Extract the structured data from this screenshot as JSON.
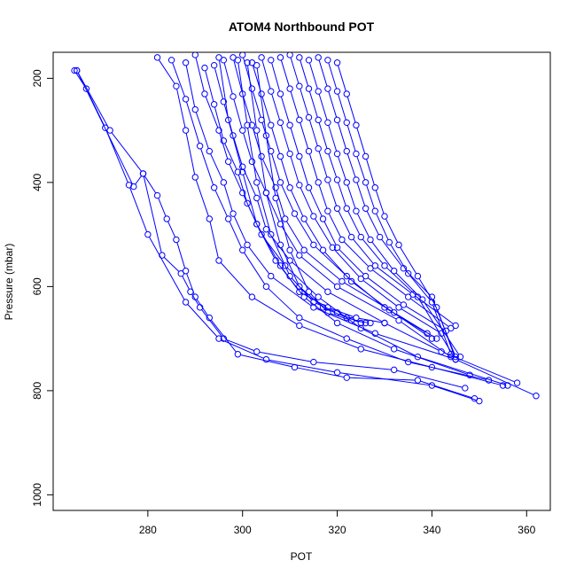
{
  "chart_data": {
    "type": "line",
    "title": "ATOM4 Northbound POT",
    "xlabel": "POT",
    "ylabel": "Pressure (mbar)",
    "xlim": [
      260,
      365
    ],
    "ylim_top_to_bottom": [
      150,
      1030
    ],
    "y_reversed": true,
    "x_ticks": [
      {
        "value": 280,
        "label": "280"
      },
      {
        "value": 300,
        "label": "300"
      },
      {
        "value": 320,
        "label": "320"
      },
      {
        "value": 340,
        "label": "340"
      },
      {
        "value": 360,
        "label": "360"
      }
    ],
    "y_ticks": [
      {
        "value": 200,
        "label": "200"
      },
      {
        "value": 400,
        "label": "400"
      },
      {
        "value": 600,
        "label": "600"
      },
      {
        "value": 800,
        "label": "800"
      },
      {
        "value": 1000,
        "label": "1000"
      }
    ],
    "series_color": "#0000FF",
    "marker": "open-circle",
    "grid": false,
    "legend": "none",
    "series": [
      {
        "x": [
          264.5,
          267,
          271,
          276,
          280,
          288,
          295,
          305,
          320,
          340,
          350
        ],
        "y": [
          185,
          220,
          295,
          405,
          500,
          630,
          700,
          740,
          765,
          790,
          820
        ]
      },
      {
        "x": [
          265,
          277,
          279,
          282,
          284,
          286,
          288,
          290,
          293,
          299,
          311,
          322,
          337,
          349
        ],
        "y": [
          185,
          408,
          383,
          425,
          470,
          510,
          570,
          620,
          660,
          730,
          755,
          775,
          780,
          815
        ]
      },
      {
        "x": [
          265,
          272,
          279,
          283,
          287,
          289,
          291,
          296,
          303,
          315,
          332,
          347
        ],
        "y": [
          185,
          300,
          383,
          540,
          575,
          610,
          640,
          700,
          725,
          745,
          760,
          795
        ]
      },
      {
        "x": [
          282,
          286,
          288,
          290,
          293,
          295,
          302,
          312,
          325,
          340,
          355
        ],
        "y": [
          160,
          215,
          300,
          390,
          470,
          550,
          620,
          675,
          720,
          755,
          790
        ]
      },
      {
        "x": [
          285,
          288,
          291,
          294,
          297,
          300,
          305,
          312,
          322,
          335,
          352
        ],
        "y": [
          165,
          240,
          330,
          410,
          470,
          530,
          600,
          660,
          700,
          745,
          780
        ]
      },
      {
        "x": [
          288,
          290,
          293,
          296,
          298,
          301,
          306,
          315,
          328,
          345,
          362
        ],
        "y": [
          170,
          260,
          340,
          400,
          460,
          520,
          580,
          640,
          690,
          740,
          810
        ]
      },
      {
        "x": [
          290,
          292,
          295,
          297,
          300,
          303,
          307,
          313,
          320,
          332,
          348
        ],
        "y": [
          155,
          230,
          300,
          360,
          420,
          480,
          550,
          620,
          670,
          720,
          770
        ]
      },
      {
        "x": [
          292,
          294,
          296,
          299,
          301,
          304,
          309,
          316,
          325,
          337,
          356
        ],
        "y": [
          180,
          250,
          320,
          380,
          440,
          500,
          560,
          620,
          680,
          735,
          790
        ]
      },
      {
        "x": [
          294,
          296,
          298,
          300,
          303,
          305,
          310,
          318,
          330,
          342,
          358
        ],
        "y": [
          175,
          245,
          310,
          370,
          430,
          490,
          550,
          610,
          670,
          725,
          785
        ]
      },
      {
        "x": [
          296,
          298,
          300,
          302,
          305,
          308,
          312,
          320,
          333,
          344
        ],
        "y": [
          165,
          235,
          300,
          360,
          420,
          480,
          540,
          600,
          665,
          735
        ]
      },
      {
        "x": [
          298,
          300,
          302,
          304,
          307,
          309,
          313,
          321,
          332,
          341
        ],
        "y": [
          160,
          230,
          290,
          350,
          410,
          470,
          530,
          590,
          650,
          700
        ]
      },
      {
        "x": [
          300,
          302,
          304,
          306,
          308,
          311,
          315,
          322,
          330,
          339
        ],
        "y": [
          155,
          220,
          280,
          340,
          400,
          460,
          520,
          580,
          640,
          690
        ]
      },
      {
        "x": [
          302,
          304,
          306,
          308,
          310,
          313,
          317,
          323,
          331,
          340
        ],
        "y": [
          170,
          230,
          290,
          350,
          410,
          470,
          530,
          590,
          645,
          700
        ]
      },
      {
        "x": [
          304,
          306,
          308,
          310,
          312,
          315,
          319,
          325,
          333,
          342
        ],
        "y": [
          160,
          225,
          285,
          345,
          405,
          465,
          525,
          585,
          640,
          690
        ]
      },
      {
        "x": [
          306,
          308,
          310,
          312,
          314,
          317,
          320,
          326,
          334,
          343
        ],
        "y": [
          165,
          230,
          290,
          350,
          410,
          470,
          525,
          580,
          635,
          685
        ]
      },
      {
        "x": [
          308,
          310,
          312,
          314,
          316,
          318,
          321,
          327,
          335,
          344
        ],
        "y": [
          160,
          220,
          280,
          340,
          400,
          455,
          510,
          565,
          620,
          680
        ]
      },
      {
        "x": [
          310,
          312,
          314,
          316,
          318,
          320,
          323,
          328,
          336,
          345
        ],
        "y": [
          155,
          215,
          275,
          335,
          395,
          450,
          505,
          560,
          615,
          675
        ]
      },
      {
        "x": [
          312,
          314,
          316,
          318,
          320,
          322,
          325,
          330,
          337,
          345
        ],
        "y": [
          160,
          220,
          280,
          340,
          395,
          450,
          505,
          560,
          620,
          740
        ]
      },
      {
        "x": [
          314,
          316,
          318,
          320,
          322,
          324,
          327,
          332,
          338,
          346
        ],
        "y": [
          165,
          225,
          285,
          345,
          400,
          455,
          510,
          570,
          625,
          735
        ]
      },
      {
        "x": [
          316,
          318,
          320,
          322,
          324,
          326,
          329,
          334,
          340,
          345
        ],
        "y": [
          160,
          220,
          280,
          340,
          395,
          450,
          505,
          565,
          620,
          735
        ]
      },
      {
        "x": [
          318,
          320,
          322,
          324,
          326,
          328,
          331,
          335,
          340,
          344
        ],
        "y": [
          165,
          225,
          285,
          345,
          400,
          455,
          515,
          575,
          630,
          730
        ]
      },
      {
        "x": [
          320,
          322,
          324,
          326,
          328,
          330,
          333,
          337,
          341,
          345
        ],
        "y": [
          170,
          230,
          290,
          350,
          410,
          465,
          520,
          580,
          640,
          740
        ]
      },
      {
        "x": [
          295,
          297,
          300,
          303,
          308,
          312,
          318,
          324,
          330
        ],
        "y": [
          160,
          280,
          380,
          480,
          560,
          610,
          640,
          660,
          670
        ]
      },
      {
        "x": [
          299,
          301,
          303,
          306,
          310,
          315,
          320,
          325
        ],
        "y": [
          165,
          290,
          400,
          500,
          580,
          630,
          650,
          670
        ]
      },
      {
        "x": [
          301,
          303,
          305,
          308,
          312,
          317,
          322,
          326
        ],
        "y": [
          170,
          300,
          420,
          520,
          600,
          640,
          660,
          670
        ]
      },
      {
        "x": [
          303,
          305,
          307,
          310,
          314,
          318,
          323,
          327
        ],
        "y": [
          175,
          310,
          430,
          530,
          610,
          650,
          665,
          670
        ]
      }
    ]
  }
}
